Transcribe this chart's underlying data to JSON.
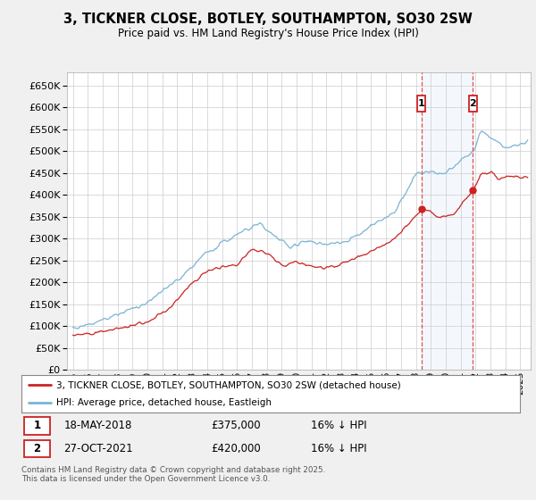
{
  "title": "3, TICKNER CLOSE, BOTLEY, SOUTHAMPTON, SO30 2SW",
  "subtitle": "Price paid vs. HM Land Registry's House Price Index (HPI)",
  "ylim": [
    0,
    680000
  ],
  "ytick_vals": [
    0,
    50000,
    100000,
    150000,
    200000,
    250000,
    300000,
    350000,
    400000,
    450000,
    500000,
    550000,
    600000,
    650000
  ],
  "hpi_color": "#7ab3d4",
  "price_color": "#cc2222",
  "sale1_date": "18-MAY-2018",
  "sale1_price": 375000,
  "sale1_label": "16% ↓ HPI",
  "sale2_date": "27-OCT-2021",
  "sale2_price": 420000,
  "sale2_label": "16% ↓ HPI",
  "sale1_x": 2018.37,
  "sale2_x": 2021.83,
  "legend1": "3, TICKNER CLOSE, BOTLEY, SOUTHAMPTON, SO30 2SW (detached house)",
  "legend2": "HPI: Average price, detached house, Eastleigh",
  "footer": "Contains HM Land Registry data © Crown copyright and database right 2025.\nThis data is licensed under the Open Government Licence v3.0.",
  "background_color": "#f0f0f0",
  "plot_bg": "#ffffff"
}
